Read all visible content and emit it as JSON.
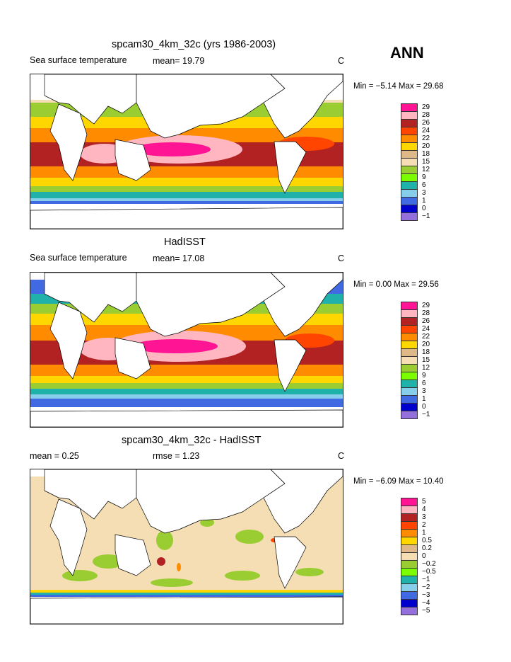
{
  "header": {
    "season": "ANN"
  },
  "panels": [
    {
      "title": "spcam30_4km_32c (yrs 1986-2003)",
      "subtitle_left": "Sea surface temperature",
      "subtitle_mid": "mean=   19.79",
      "unit": "C",
      "stats": "Min =   −5.14  Max =   29.68",
      "levels": [
        "29",
        "28",
        "26",
        "24",
        "22",
        "20",
        "18",
        "15",
        "12",
        "9",
        "6",
        "3",
        "1",
        "0",
        "−1"
      ],
      "colors": [
        "#ff1493",
        "#ffb6c1",
        "#b22222",
        "#ff4500",
        "#ff8c00",
        "#ffd700",
        "#deb887",
        "#f5deb3",
        "#9acd32",
        "#7cfc00",
        "#20b2aa",
        "#87ceeb",
        "#4169e1",
        "#0000cd",
        "#9370db"
      ]
    },
    {
      "title": "HadISST",
      "subtitle_left": "Sea surface temperature",
      "subtitle_mid": "mean=   17.08",
      "unit": "C",
      "stats": "Min =    0.00  Max =   29.56",
      "levels": [
        "29",
        "28",
        "26",
        "24",
        "22",
        "20",
        "18",
        "15",
        "12",
        "9",
        "6",
        "3",
        "1",
        "0",
        "−1"
      ],
      "colors": [
        "#ff1493",
        "#ffb6c1",
        "#b22222",
        "#ff4500",
        "#ff8c00",
        "#ffd700",
        "#deb887",
        "#f5deb3",
        "#9acd32",
        "#7cfc00",
        "#20b2aa",
        "#87ceeb",
        "#4169e1",
        "#0000cd",
        "#9370db"
      ]
    },
    {
      "title": "spcam30_4km_32c - HadISST",
      "subtitle_left": "mean =     0.25",
      "subtitle_mid": "rmse =     1.23",
      "unit": "C",
      "stats": "Min =   −6.09  Max =   10.40",
      "levels": [
        "5",
        "4",
        "3",
        "2",
        "1",
        "0.5",
        "0.2",
        "0",
        "−0.2",
        "−0.5",
        "−1",
        "−2",
        "−3",
        "−4",
        "−5"
      ],
      "colors": [
        "#ff1493",
        "#ffb6c1",
        "#b22222",
        "#ff4500",
        "#ff8c00",
        "#ffd700",
        "#deb887",
        "#f5deb3",
        "#9acd32",
        "#7cfc00",
        "#20b2aa",
        "#87ceeb",
        "#4169e1",
        "#0000cd",
        "#9370db"
      ]
    }
  ]
}
